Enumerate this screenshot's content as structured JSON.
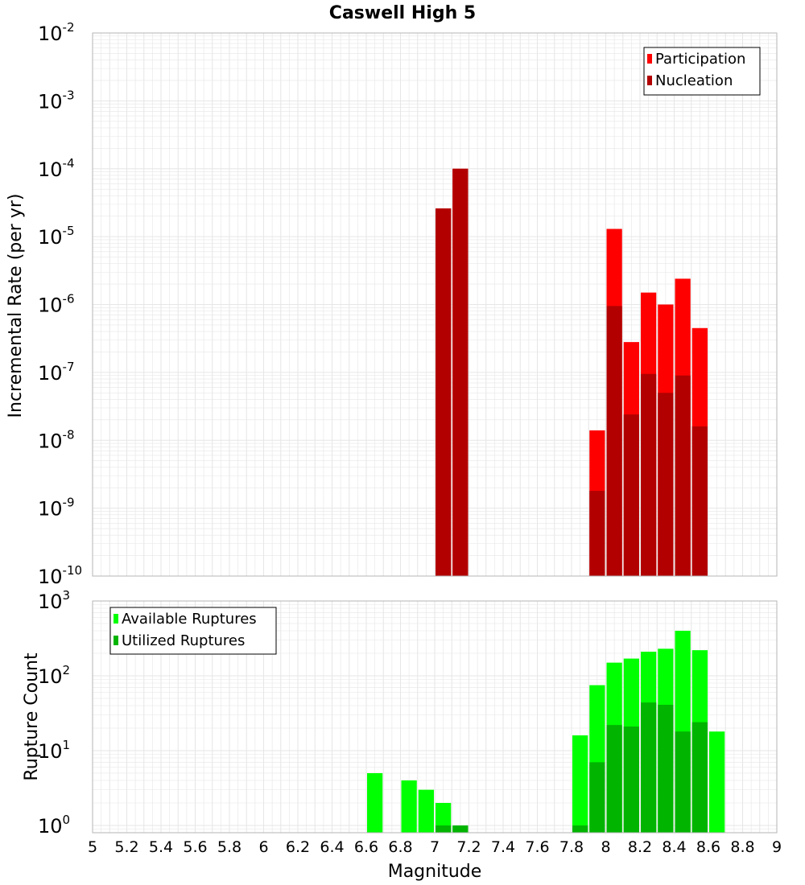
{
  "title": "Caswell High 5",
  "xlabel": "Magnitude",
  "colors": {
    "participation": "#ff0000",
    "nucleation": "#b20000",
    "available": "#00ff00",
    "utilized": "#00b400",
    "grid": "#e6e6e6",
    "frame": "#b4b4b4"
  },
  "chart_data": [
    {
      "type": "bar",
      "panel": "top",
      "ylabel": "Incremental Rate (per yr)",
      "yscale": "log",
      "ylim": [
        1e-10,
        0.01
      ],
      "xlim": [
        5,
        9
      ],
      "bin_width": 0.1,
      "legend": {
        "position": "top-right",
        "entries": [
          "Participation",
          "Nucleation"
        ]
      },
      "series": [
        {
          "name": "Participation",
          "x": [
            7.05,
            7.15,
            7.95,
            8.05,
            8.15,
            8.25,
            8.35,
            8.45,
            8.55
          ],
          "values": [
            2.6e-05,
            0.0001,
            1.4e-08,
            1.3e-05,
            2.8e-07,
            1.5e-06,
            1e-06,
            2.4e-06,
            4.5e-07
          ]
        },
        {
          "name": "Nucleation",
          "x": [
            7.05,
            7.15,
            7.95,
            8.05,
            8.15,
            8.25,
            8.35,
            8.45,
            8.55
          ],
          "values": [
            2.6e-05,
            0.0001,
            1.8e-09,
            9.5e-07,
            2.4e-08,
            9.5e-08,
            5e-08,
            9e-08,
            1.6e-08
          ]
        }
      ]
    },
    {
      "type": "bar",
      "panel": "bottom",
      "ylabel": "Rupture Count",
      "yscale": "log",
      "ylim": [
        0.8,
        1000
      ],
      "xlim": [
        5,
        9
      ],
      "bin_width": 0.1,
      "legend": {
        "position": "top-left",
        "entries": [
          "Available Ruptures",
          "Utilized Ruptures"
        ]
      },
      "series": [
        {
          "name": "Available Ruptures",
          "x": [
            6.65,
            6.85,
            6.95,
            7.05,
            7.15,
            7.85,
            7.95,
            8.05,
            8.15,
            8.25,
            8.35,
            8.45,
            8.55,
            8.65
          ],
          "values": [
            5,
            4,
            3,
            2,
            1,
            16,
            75,
            150,
            170,
            210,
            230,
            400,
            220,
            18
          ]
        },
        {
          "name": "Utilized Ruptures",
          "x": [
            7.05,
            7.15,
            7.85,
            7.95,
            8.05,
            8.15,
            8.25,
            8.35,
            8.45,
            8.55
          ],
          "values": [
            1,
            1,
            1,
            7,
            22,
            21,
            44,
            41,
            18,
            24
          ]
        }
      ]
    }
  ],
  "x_ticks": [
    "5",
    "5.2",
    "5.4",
    "5.6",
    "5.8",
    "6",
    "6.2",
    "6.4",
    "6.6",
    "6.8",
    "7",
    "7.2",
    "7.4",
    "7.6",
    "7.8",
    "8",
    "8.2",
    "8.4",
    "8.6",
    "8.8",
    "9"
  ],
  "top_y_ticks": [
    {
      "base": "10",
      "exp": "-2"
    },
    {
      "base": "10",
      "exp": "-3"
    },
    {
      "base": "10",
      "exp": "-4"
    },
    {
      "base": "10",
      "exp": "-5"
    },
    {
      "base": "10",
      "exp": "-6"
    },
    {
      "base": "10",
      "exp": "-7"
    },
    {
      "base": "10",
      "exp": "-8"
    },
    {
      "base": "10",
      "exp": "-9"
    },
    {
      "base": "10",
      "exp": "-10"
    }
  ],
  "bottom_y_ticks": [
    {
      "base": "10",
      "exp": "3"
    },
    {
      "base": "10",
      "exp": "2"
    },
    {
      "base": "10",
      "exp": "1"
    },
    {
      "base": "10",
      "exp": "0"
    }
  ]
}
